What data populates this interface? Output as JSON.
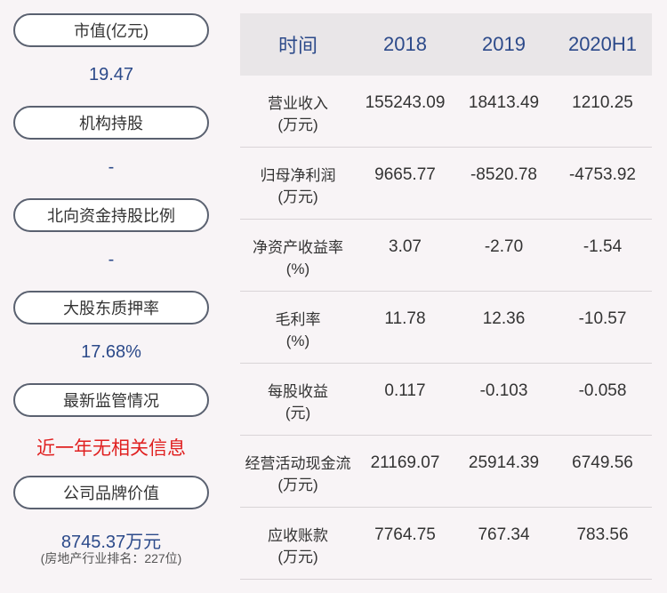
{
  "left": {
    "items": [
      {
        "label": "市值(亿元)",
        "value": "19.47"
      },
      {
        "label": "机构持股",
        "value": "-"
      },
      {
        "label": "北向资金持股比例",
        "value": "-"
      },
      {
        "label": "大股东质押率",
        "value": "17.68%"
      },
      {
        "label": "最新监管情况",
        "value": "近一年无相关信息"
      },
      {
        "label": "公司品牌价值",
        "value": "8745.37万元",
        "note": "(房地产行业排名：227位)"
      }
    ],
    "colors": {
      "value": "#2c4a8a",
      "alert": "#e02020"
    }
  },
  "table": {
    "headers": [
      "时间",
      "2018",
      "2019",
      "2020H1"
    ],
    "rows": [
      {
        "label": "营业收入",
        "unit": "(万元)",
        "values": [
          "155243.09",
          "18413.49",
          "1210.25"
        ]
      },
      {
        "label": "归母净利润",
        "unit": "(万元)",
        "values": [
          "9665.77",
          "-8520.78",
          "-4753.92"
        ]
      },
      {
        "label": "净资产收益率",
        "unit": "(%)",
        "values": [
          "3.07",
          "-2.70",
          "-1.54"
        ]
      },
      {
        "label": "毛利率",
        "unit": "(%)",
        "values": [
          "11.78",
          "12.36",
          "-10.57"
        ]
      },
      {
        "label": "每股收益",
        "unit": "(元)",
        "values": [
          "0.117",
          "-0.103",
          "-0.058"
        ]
      },
      {
        "label": "经营活动现金流",
        "unit": "(万元)",
        "values": [
          "21169.07",
          "25914.39",
          "6749.56"
        ]
      },
      {
        "label": "应收账款",
        "unit": "(万元)",
        "values": [
          "7764.75",
          "767.34",
          "783.56"
        ]
      }
    ]
  }
}
